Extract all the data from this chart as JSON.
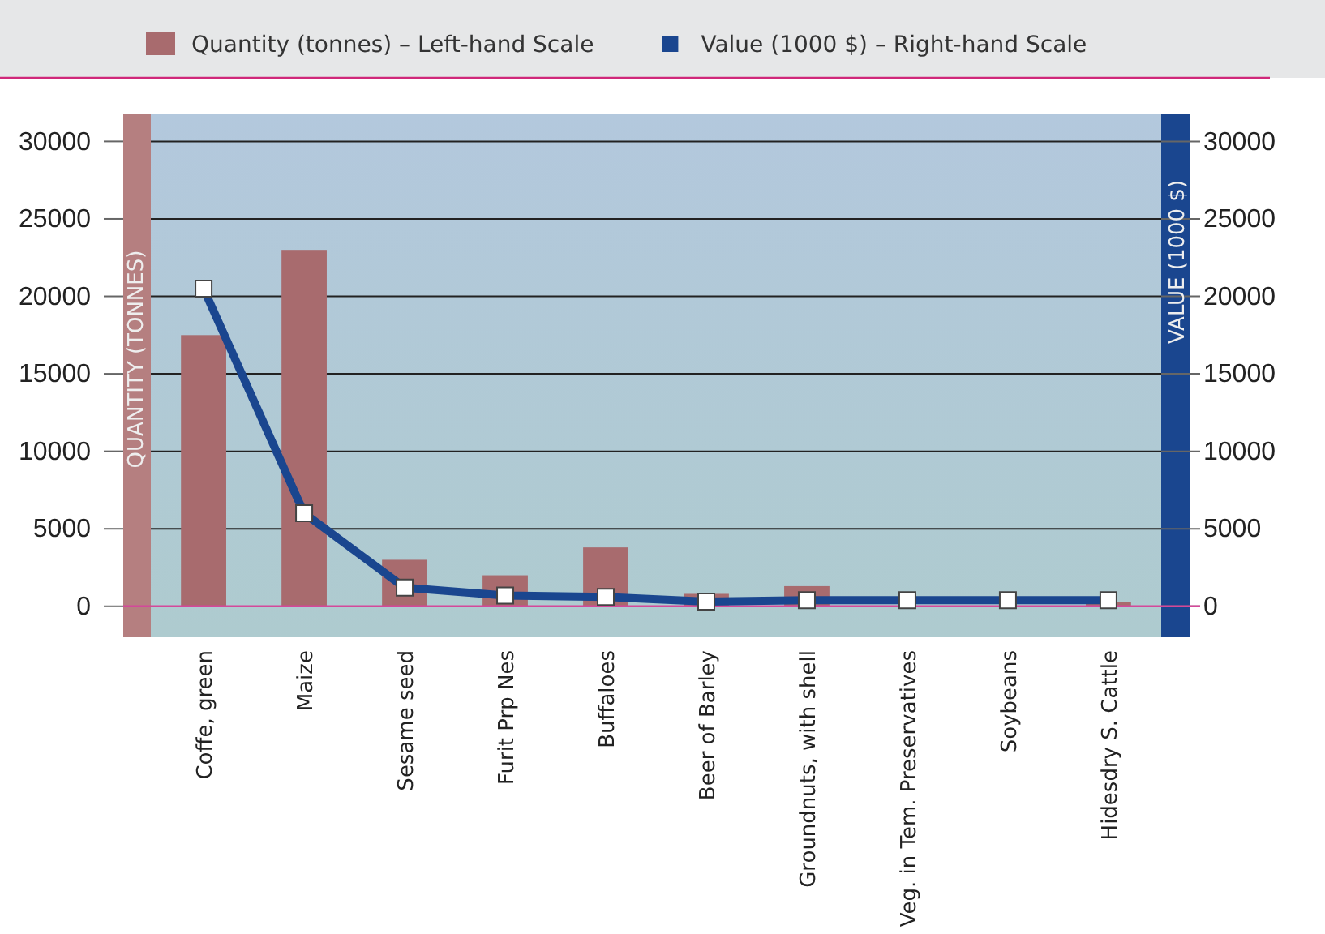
{
  "chart_data": {
    "type": "bar",
    "categories": [
      "Coffe, green",
      "Maize",
      "Sesame seed",
      "Furit Prp Nes",
      "Buffaloes",
      "Beer of Barley",
      "Groundnuts, with shell",
      "Veg. in Tem. Preservatives",
      "Soybeans",
      "Hidesdry S. Cattle"
    ],
    "series": [
      {
        "name": "Quantity (tonnes) – Left-hand Scale",
        "color": "#a86b6e",
        "values": [
          17500,
          23000,
          3000,
          2000,
          3800,
          800,
          1300,
          null,
          null,
          300
        ]
      },
      {
        "name": "Value (1000 $) – Right-hand Scale",
        "type": "line",
        "axis": "y2",
        "color": "#1a468f",
        "marker": "square",
        "values": [
          20500,
          6000,
          1200,
          700,
          600,
          300,
          400,
          400,
          400,
          400
        ]
      }
    ],
    "ylabel": "QUANTITY (TONNES)",
    "y2label": "VALUE (1000 $)",
    "ylim": [
      -2000,
      31800
    ],
    "yticks": [
      0,
      5000,
      10000,
      15000,
      20000,
      25000,
      30000
    ],
    "y2lim": [
      -2000,
      31800
    ],
    "y2ticks": [
      0,
      5000,
      10000,
      15000,
      20000,
      25000,
      30000
    ],
    "ref_lines": [
      {
        "axis": "y",
        "value": 0,
        "color": "#d4489a"
      }
    ],
    "grid": "y",
    "legend": "top"
  }
}
